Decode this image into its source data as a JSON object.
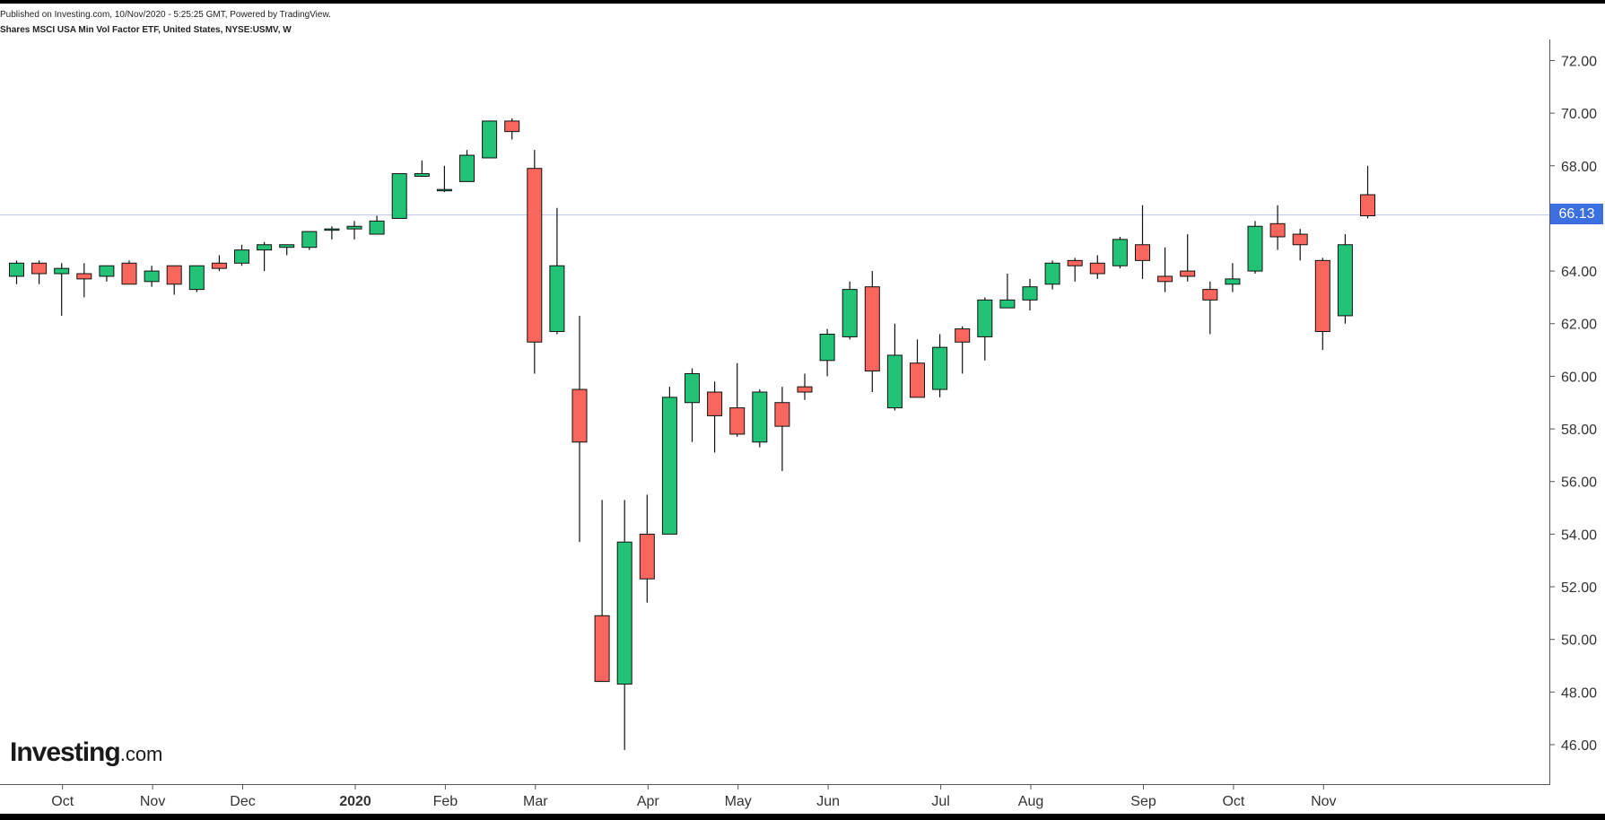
{
  "header": {
    "published_line": "Published on Investing.com, 10/Nov/2020 - 5:25:25 GMT, Powered by TradingView.",
    "symbol_line": "Shares MSCI USA Min Vol Factor ETF, United States, NYSE:USMV, W"
  },
  "logo": {
    "brand": "Investing",
    "suffix": ".com"
  },
  "chart_data": {
    "type": "candlestick",
    "interval": "W",
    "last_price": "66.13",
    "price_line_value": 66.13,
    "ylim": [
      44.5,
      72.8
    ],
    "y_ticks": [
      "46.00",
      "48.00",
      "50.00",
      "52.00",
      "54.00",
      "56.00",
      "58.00",
      "60.00",
      "62.00",
      "64.00",
      "66.00",
      "68.00",
      "70.00",
      "72.00"
    ],
    "x_ticks": [
      "Oct",
      "Nov",
      "Dec",
      "2020",
      "Feb",
      "Mar",
      "Apr",
      "May",
      "Jun",
      "Jul",
      "Aug",
      "Sep",
      "Oct",
      "Nov"
    ],
    "colors": {
      "up": "#22c277",
      "down": "#f8665d",
      "price_line": "#b9c6f2",
      "price_tag": "#3c6fe0"
    },
    "candles": [
      {
        "o": 63.8,
        "h": 64.4,
        "l": 63.5,
        "c": 64.3
      },
      {
        "o": 64.3,
        "h": 64.4,
        "l": 63.5,
        "c": 63.9
      },
      {
        "o": 63.9,
        "h": 64.3,
        "l": 62.3,
        "c": 64.1
      },
      {
        "o": 63.9,
        "h": 64.3,
        "l": 63.0,
        "c": 63.7
      },
      {
        "o": 63.8,
        "h": 64.2,
        "l": 63.6,
        "c": 64.2
      },
      {
        "o": 64.3,
        "h": 64.4,
        "l": 63.5,
        "c": 63.5
      },
      {
        "o": 63.6,
        "h": 64.2,
        "l": 63.4,
        "c": 64.0
      },
      {
        "o": 64.2,
        "h": 64.2,
        "l": 63.1,
        "c": 63.5
      },
      {
        "o": 63.3,
        "h": 64.2,
        "l": 63.2,
        "c": 64.2
      },
      {
        "o": 64.3,
        "h": 64.6,
        "l": 64.0,
        "c": 64.1
      },
      {
        "o": 64.3,
        "h": 65.0,
        "l": 64.2,
        "c": 64.8
      },
      {
        "o": 64.8,
        "h": 65.1,
        "l": 64.0,
        "c": 65.0
      },
      {
        "o": 64.9,
        "h": 65.0,
        "l": 64.6,
        "c": 65.0
      },
      {
        "o": 64.9,
        "h": 65.5,
        "l": 64.8,
        "c": 65.5
      },
      {
        "o": 65.6,
        "h": 65.7,
        "l": 65.2,
        "c": 65.6
      },
      {
        "o": 65.6,
        "h": 65.9,
        "l": 65.2,
        "c": 65.7
      },
      {
        "o": 65.4,
        "h": 66.1,
        "l": 65.4,
        "c": 65.9
      },
      {
        "o": 66.0,
        "h": 67.7,
        "l": 66.0,
        "c": 67.7
      },
      {
        "o": 67.6,
        "h": 68.2,
        "l": 67.6,
        "c": 67.7
      },
      {
        "o": 67.1,
        "h": 68.0,
        "l": 67.0,
        "c": 67.1
      },
      {
        "o": 67.4,
        "h": 68.6,
        "l": 67.4,
        "c": 68.4
      },
      {
        "o": 68.3,
        "h": 69.7,
        "l": 68.3,
        "c": 69.7
      },
      {
        "o": 69.7,
        "h": 69.8,
        "l": 69.0,
        "c": 69.3
      },
      {
        "o": 67.9,
        "h": 68.6,
        "l": 60.1,
        "c": 61.3
      },
      {
        "o": 61.7,
        "h": 66.4,
        "l": 61.6,
        "c": 64.2
      },
      {
        "o": 59.5,
        "h": 62.3,
        "l": 53.7,
        "c": 57.5
      },
      {
        "o": 50.9,
        "h": 55.3,
        "l": 48.4,
        "c": 48.4
      },
      {
        "o": 48.3,
        "h": 55.3,
        "l": 45.8,
        "c": 53.7
      },
      {
        "o": 54.0,
        "h": 55.5,
        "l": 51.4,
        "c": 52.3
      },
      {
        "o": 54.0,
        "h": 59.6,
        "l": 54.0,
        "c": 59.2
      },
      {
        "o": 59.0,
        "h": 60.3,
        "l": 57.5,
        "c": 60.1
      },
      {
        "o": 59.4,
        "h": 59.8,
        "l": 57.1,
        "c": 58.5
      },
      {
        "o": 58.8,
        "h": 60.5,
        "l": 57.7,
        "c": 57.8
      },
      {
        "o": 57.5,
        "h": 59.5,
        "l": 57.3,
        "c": 59.4
      },
      {
        "o": 59.0,
        "h": 59.6,
        "l": 56.4,
        "c": 58.1
      },
      {
        "o": 59.6,
        "h": 60.1,
        "l": 59.1,
        "c": 59.4
      },
      {
        "o": 60.6,
        "h": 61.8,
        "l": 60.0,
        "c": 61.6
      },
      {
        "o": 61.5,
        "h": 63.6,
        "l": 61.4,
        "c": 63.3
      },
      {
        "o": 63.4,
        "h": 64.0,
        "l": 59.4,
        "c": 60.2
      },
      {
        "o": 58.8,
        "h": 62.0,
        "l": 58.7,
        "c": 60.8
      },
      {
        "o": 60.5,
        "h": 61.4,
        "l": 59.2,
        "c": 59.2
      },
      {
        "o": 59.5,
        "h": 61.6,
        "l": 59.2,
        "c": 61.1
      },
      {
        "o": 61.8,
        "h": 61.9,
        "l": 60.1,
        "c": 61.3
      },
      {
        "o": 61.5,
        "h": 63.0,
        "l": 60.6,
        "c": 62.9
      },
      {
        "o": 62.6,
        "h": 63.9,
        "l": 62.6,
        "c": 62.9
      },
      {
        "o": 62.9,
        "h": 63.7,
        "l": 62.5,
        "c": 63.4
      },
      {
        "o": 63.5,
        "h": 64.4,
        "l": 63.3,
        "c": 64.3
      },
      {
        "o": 64.4,
        "h": 64.5,
        "l": 63.6,
        "c": 64.2
      },
      {
        "o": 64.3,
        "h": 64.6,
        "l": 63.7,
        "c": 63.9
      },
      {
        "o": 64.2,
        "h": 65.3,
        "l": 64.1,
        "c": 65.2
      },
      {
        "o": 65.0,
        "h": 66.5,
        "l": 63.7,
        "c": 64.4
      },
      {
        "o": 63.8,
        "h": 64.9,
        "l": 63.2,
        "c": 63.6
      },
      {
        "o": 64.0,
        "h": 65.4,
        "l": 63.6,
        "c": 63.8
      },
      {
        "o": 63.3,
        "h": 63.6,
        "l": 61.6,
        "c": 62.9
      },
      {
        "o": 63.5,
        "h": 64.3,
        "l": 63.2,
        "c": 63.7
      },
      {
        "o": 64.0,
        "h": 65.9,
        "l": 63.9,
        "c": 65.7
      },
      {
        "o": 65.8,
        "h": 66.5,
        "l": 64.8,
        "c": 65.3
      },
      {
        "o": 65.4,
        "h": 65.6,
        "l": 64.4,
        "c": 65.0
      },
      {
        "o": 64.4,
        "h": 64.5,
        "l": 61.0,
        "c": 61.7
      },
      {
        "o": 62.3,
        "h": 65.4,
        "l": 62.0,
        "c": 65.0
      },
      {
        "o": 66.9,
        "h": 68.0,
        "l": 66.0,
        "c": 66.1
      }
    ]
  }
}
